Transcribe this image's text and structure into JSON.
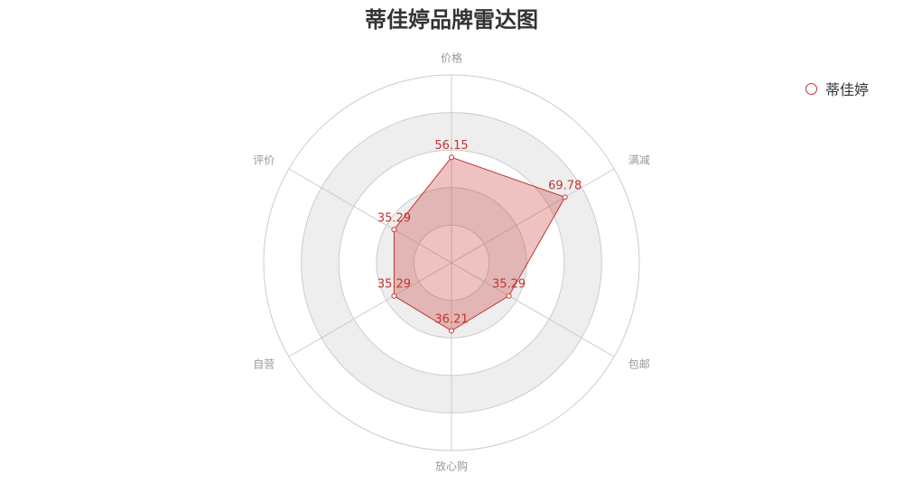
{
  "chart_data": {
    "type": "radar",
    "title": "蒂佳婷品牌雷达图",
    "indicators": [
      "价格",
      "满减",
      "包邮",
      "放心购",
      "自营",
      "评价"
    ],
    "max": 100,
    "split_number": 5,
    "series": [
      {
        "name": "蒂佳婷",
        "values": [
          56.15,
          69.78,
          35.29,
          36.21,
          35.29,
          35.29
        ]
      }
    ],
    "legend_position": "top-right",
    "colors": {
      "series": "#c23531",
      "area": "#c23531",
      "split_area_light": "#ffffff",
      "split_area_dark": "#eeeeee",
      "split_line": "#cccccc",
      "axis_label": "#999999",
      "title": "#333333"
    }
  }
}
